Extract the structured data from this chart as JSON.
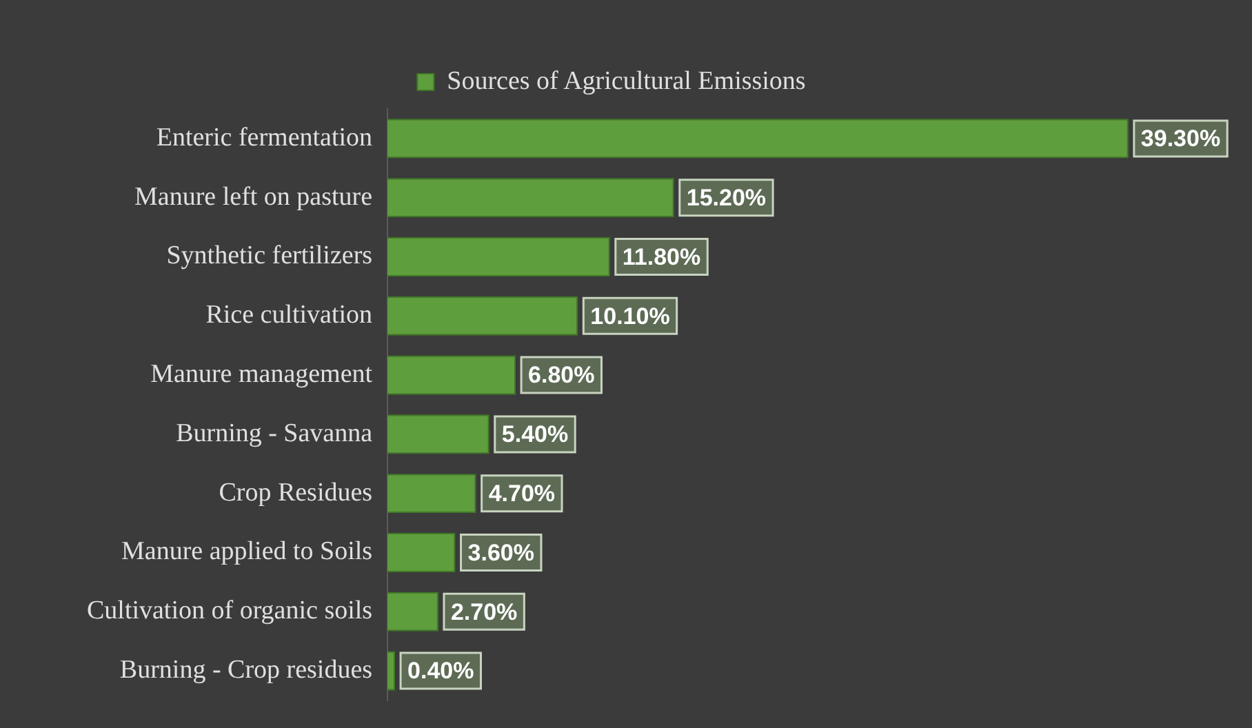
{
  "chart_data": {
    "type": "bar",
    "orientation": "horizontal",
    "categories": [
      "Enteric fermentation",
      "Manure left on pasture",
      "Synthetic fertilizers",
      "Rice cultivation",
      "Manure management",
      "Burning - Savanna",
      "Crop Residues",
      "Manure applied to Soils",
      "Cultivation of organic soils",
      "Burning - Crop residues"
    ],
    "series": [
      {
        "name": "Sources of Agricultural Emissions",
        "color": "#5f9e3c",
        "values": [
          39.3,
          15.2,
          11.8,
          10.1,
          6.8,
          5.4,
          4.7,
          3.6,
          2.7,
          0.4
        ],
        "value_labels": [
          "39.30%",
          "15.20%",
          "11.80%",
          "10.10%",
          "6.80%",
          "5.40%",
          "4.70%",
          "3.60%",
          "2.70%",
          "0.40%"
        ]
      }
    ],
    "legend": "top",
    "grid": false
  }
}
